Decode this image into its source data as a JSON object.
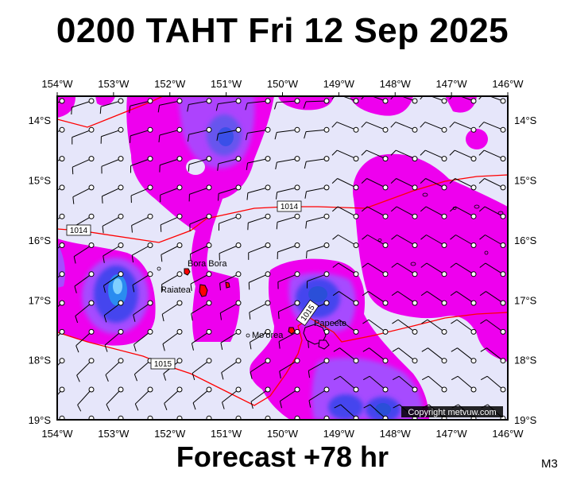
{
  "header": {
    "title": "0200 TAHT Fri 12 Sep 2025"
  },
  "footer": {
    "forecast": "Forecast +78 hr",
    "code": "M3"
  },
  "credit": "Copyright metvuw.com",
  "map": {
    "lon_range": [
      -154,
      -146
    ],
    "lat_range": [
      -19,
      -13.6
    ],
    "lon_ticks": [
      {
        "value": -154,
        "label": "154°W"
      },
      {
        "value": -153,
        "label": "153°W"
      },
      {
        "value": -152,
        "label": "152°W"
      },
      {
        "value": -151,
        "label": "151°W"
      },
      {
        "value": -150,
        "label": "150°W"
      },
      {
        "value": -149,
        "label": "149°W"
      },
      {
        "value": -148,
        "label": "148°W"
      },
      {
        "value": -147,
        "label": "147°W"
      },
      {
        "value": -146,
        "label": "146°W"
      }
    ],
    "lat_ticks": [
      {
        "value": -14,
        "label": "14°S"
      },
      {
        "value": -15,
        "label": "15°S"
      },
      {
        "value": -16,
        "label": "16°S"
      },
      {
        "value": -17,
        "label": "17°S"
      },
      {
        "value": -18,
        "label": "18°S"
      },
      {
        "value": -19,
        "label": "19°S"
      }
    ],
    "places": [
      {
        "name": "Bora Bora",
        "lon": -151.75,
        "lat": -16.5
      },
      {
        "name": "Raiatea",
        "lon": -151.45,
        "lat": -16.83
      },
      {
        "name": "Mo'orea",
        "lon": -149.83,
        "lat": -17.53
      },
      {
        "name": "Papeete",
        "lon": -149.57,
        "lat": -17.53
      }
    ],
    "isobars": [
      {
        "label": "1014"
      },
      {
        "label": "1014"
      },
      {
        "label": "1015"
      },
      {
        "label": "1015"
      }
    ],
    "colors": {
      "background": "#e6e6fa",
      "rain_light": "#ee00ee",
      "rain_medium": "#a64cff",
      "rain_heavy": "#4444ee",
      "rain_core": "#2a8cf0",
      "isobar": "#ff0000"
    }
  }
}
